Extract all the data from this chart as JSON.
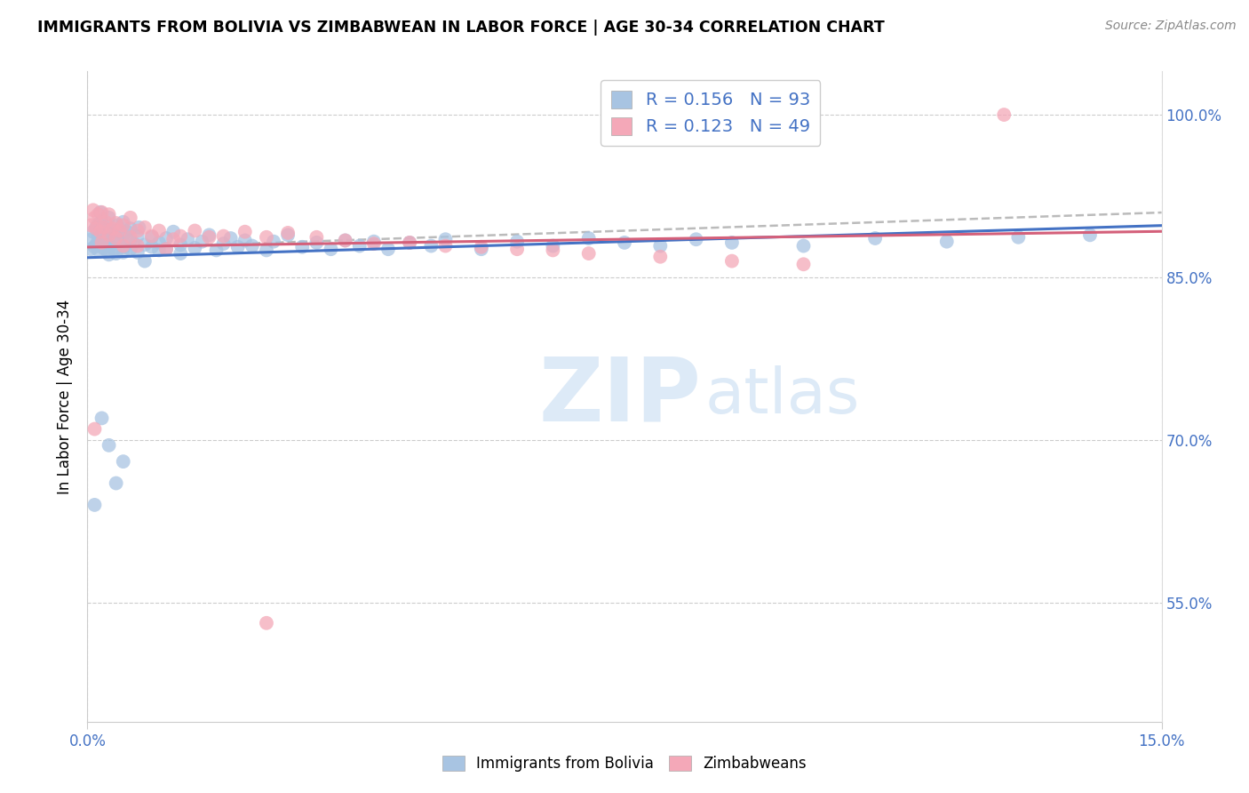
{
  "title": "IMMIGRANTS FROM BOLIVIA VS ZIMBABWEAN IN LABOR FORCE | AGE 30-34 CORRELATION CHART",
  "source": "Source: ZipAtlas.com",
  "ylabel": "In Labor Force | Age 30-34",
  "ytick_vals": [
    0.55,
    0.7,
    0.85,
    1.0
  ],
  "ytick_labels": [
    "55.0%",
    "70.0%",
    "85.0%",
    "100.0%"
  ],
  "xlim": [
    0.0,
    0.15
  ],
  "ylim": [
    0.44,
    1.04
  ],
  "bolivia_color": "#a8c4e2",
  "zimbabwe_color": "#f4a8b8",
  "trend_bolivia_color": "#4472c4",
  "trend_zimbabwe_color": "#d4607a",
  "R_bolivia": 0.156,
  "N_bolivia": 93,
  "R_zimbabwe": 0.123,
  "N_zimbabwe": 49,
  "legend_labels": [
    "Immigrants from Bolivia",
    "Zimbabweans"
  ],
  "watermark_zip": "ZIP",
  "watermark_atlas": "atlas",
  "bolivia_x": [
    0.0005,
    0.0006,
    0.0008,
    0.001,
    0.0012,
    0.0013,
    0.0015,
    0.0015,
    0.0015,
    0.0018,
    0.002,
    0.002,
    0.002,
    0.0022,
    0.0022,
    0.0025,
    0.0025,
    0.0028,
    0.003,
    0.003,
    0.003,
    0.003,
    0.0032,
    0.0035,
    0.0038,
    0.004,
    0.004,
    0.0042,
    0.0045,
    0.005,
    0.005,
    0.005,
    0.0052,
    0.0055,
    0.006,
    0.006,
    0.006,
    0.0065,
    0.007,
    0.007,
    0.0072,
    0.008,
    0.008,
    0.009,
    0.009,
    0.01,
    0.01,
    0.011,
    0.011,
    0.012,
    0.013,
    0.013,
    0.014,
    0.015,
    0.016,
    0.017,
    0.018,
    0.019,
    0.02,
    0.021,
    0.022,
    0.023,
    0.025,
    0.026,
    0.028,
    0.03,
    0.032,
    0.034,
    0.036,
    0.038,
    0.04,
    0.042,
    0.045,
    0.048,
    0.05,
    0.055,
    0.06,
    0.065,
    0.07,
    0.075,
    0.08,
    0.085,
    0.09,
    0.1,
    0.11,
    0.12,
    0.13,
    0.14,
    0.001,
    0.002,
    0.003,
    0.004,
    0.005
  ],
  "bolivia_y": [
    0.876,
    0.885,
    0.892,
    0.878,
    0.896,
    0.881,
    0.899,
    0.888,
    0.875,
    0.91,
    0.882,
    0.895,
    0.902,
    0.877,
    0.891,
    0.888,
    0.876,
    0.883,
    0.894,
    0.871,
    0.905,
    0.886,
    0.879,
    0.893,
    0.876,
    0.887,
    0.872,
    0.898,
    0.883,
    0.889,
    0.873,
    0.901,
    0.878,
    0.892,
    0.884,
    0.876,
    0.895,
    0.881,
    0.888,
    0.873,
    0.896,
    0.88,
    0.865,
    0.878,
    0.887,
    0.882,
    0.875,
    0.886,
    0.876,
    0.892,
    0.88,
    0.872,
    0.885,
    0.877,
    0.883,
    0.889,
    0.875,
    0.881,
    0.886,
    0.878,
    0.884,
    0.879,
    0.875,
    0.883,
    0.889,
    0.878,
    0.882,
    0.876,
    0.884,
    0.879,
    0.883,
    0.876,
    0.882,
    0.879,
    0.885,
    0.876,
    0.883,
    0.879,
    0.886,
    0.882,
    0.879,
    0.885,
    0.882,
    0.879,
    0.886,
    0.883,
    0.887,
    0.889,
    0.64,
    0.72,
    0.695,
    0.66,
    0.68
  ],
  "zimbabwe_x": [
    0.0005,
    0.0008,
    0.001,
    0.0012,
    0.0015,
    0.0018,
    0.002,
    0.002,
    0.0022,
    0.0025,
    0.003,
    0.003,
    0.0035,
    0.004,
    0.004,
    0.0045,
    0.005,
    0.005,
    0.006,
    0.006,
    0.007,
    0.007,
    0.008,
    0.009,
    0.01,
    0.011,
    0.012,
    0.013,
    0.015,
    0.017,
    0.019,
    0.022,
    0.025,
    0.028,
    0.032,
    0.036,
    0.04,
    0.045,
    0.05,
    0.055,
    0.06,
    0.065,
    0.07,
    0.08,
    0.09,
    0.1,
    0.025,
    0.128,
    0.001
  ],
  "zimbabwe_y": [
    0.898,
    0.912,
    0.905,
    0.895,
    0.908,
    0.892,
    0.91,
    0.882,
    0.896,
    0.901,
    0.889,
    0.908,
    0.895,
    0.9,
    0.886,
    0.893,
    0.898,
    0.879,
    0.887,
    0.905,
    0.893,
    0.879,
    0.896,
    0.888,
    0.893,
    0.876,
    0.885,
    0.888,
    0.893,
    0.887,
    0.888,
    0.892,
    0.887,
    0.891,
    0.887,
    0.884,
    0.881,
    0.882,
    0.879,
    0.878,
    0.876,
    0.875,
    0.872,
    0.869,
    0.865,
    0.862,
    0.531,
    1.0,
    0.71
  ]
}
